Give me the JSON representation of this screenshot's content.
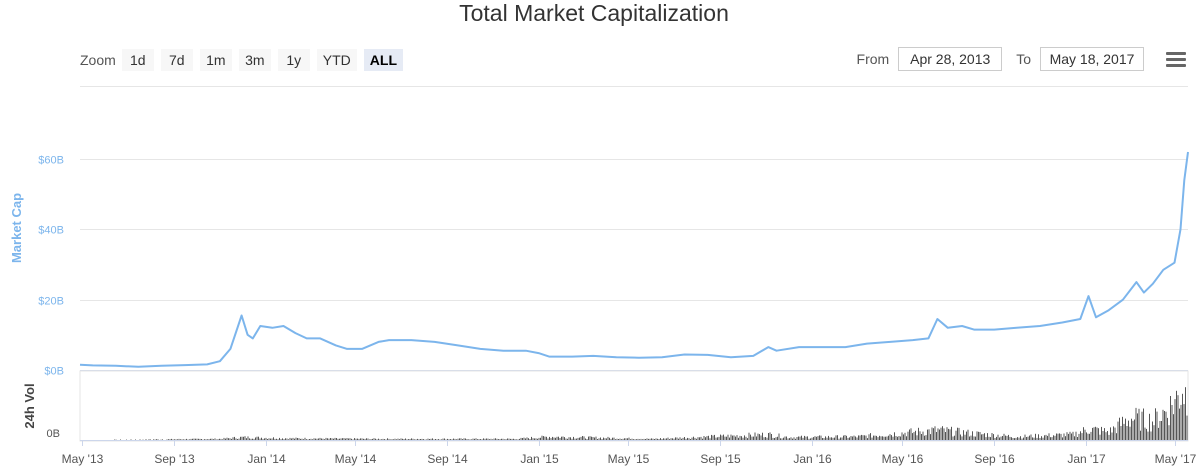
{
  "toolbar": {
    "zoom_label": "Zoom",
    "zoom_buttons": [
      "1d",
      "7d",
      "1m",
      "3m",
      "1y",
      "YTD",
      "ALL"
    ],
    "active_zoom": "ALL",
    "from_label": "From",
    "from_value": "Apr 28, 2013",
    "to_label": "To",
    "to_value": "May 18, 2017"
  },
  "icons": {
    "menu": "hamburger-menu-icon"
  },
  "colors": {
    "line": "#7cb5ec",
    "volume": "#555555",
    "grid": "#e6e6e6",
    "axis_text": "#666666"
  },
  "chart_data": {
    "type": "line",
    "title": "Total Market Capitalization",
    "ylabel": "Market Cap",
    "y_tick_labels": [
      "$0B",
      "$20B",
      "$40B",
      "$60B"
    ],
    "y_ticks": [
      0,
      20,
      40,
      60
    ],
    "ylim": [
      0,
      60
    ],
    "x_tick_labels": [
      "May '13",
      "Sep '13",
      "Jan '14",
      "May '14",
      "Sep '14",
      "Jan '15",
      "May '15",
      "Sep '15",
      "Jan '16",
      "May '16",
      "Sep '16",
      "Jan '17",
      "May '17"
    ],
    "x_ticks": [
      "2013-05-01",
      "2013-09-01",
      "2014-01-01",
      "2014-05-01",
      "2014-09-01",
      "2015-01-01",
      "2015-05-01",
      "2015-09-01",
      "2016-01-01",
      "2016-05-01",
      "2016-09-01",
      "2017-01-01",
      "2017-05-01"
    ],
    "xlim": [
      "2013-04-28",
      "2017-05-18"
    ],
    "grid": true,
    "series": [
      {
        "type": "line",
        "points": [
          [
            "2013-04-28",
            1.5
          ],
          [
            "2013-05-15",
            1.3
          ],
          [
            "2013-06-15",
            1.2
          ],
          [
            "2013-07-15",
            0.9
          ],
          [
            "2013-08-15",
            1.2
          ],
          [
            "2013-09-15",
            1.4
          ],
          [
            "2013-10-15",
            1.6
          ],
          [
            "2013-11-01",
            2.5
          ],
          [
            "2013-11-15",
            6.0
          ],
          [
            "2013-11-30",
            15.5
          ],
          [
            "2013-12-08",
            10.0
          ],
          [
            "2013-12-15",
            9.0
          ],
          [
            "2013-12-25",
            12.5
          ],
          [
            "2014-01-10",
            12.0
          ],
          [
            "2014-01-25",
            12.5
          ],
          [
            "2014-02-10",
            10.5
          ],
          [
            "2014-02-25",
            9.0
          ],
          [
            "2014-03-15",
            9.0
          ],
          [
            "2014-04-05",
            7.0
          ],
          [
            "2014-04-20",
            6.0
          ],
          [
            "2014-05-10",
            6.0
          ],
          [
            "2014-06-01",
            8.0
          ],
          [
            "2014-06-15",
            8.5
          ],
          [
            "2014-07-15",
            8.5
          ],
          [
            "2014-08-15",
            8.0
          ],
          [
            "2014-09-15",
            7.0
          ],
          [
            "2014-10-15",
            6.0
          ],
          [
            "2014-11-15",
            5.5
          ],
          [
            "2014-12-15",
            5.5
          ],
          [
            "2015-01-01",
            4.8
          ],
          [
            "2015-01-15",
            3.8
          ],
          [
            "2015-02-15",
            3.8
          ],
          [
            "2015-03-15",
            4.0
          ],
          [
            "2015-04-15",
            3.6
          ],
          [
            "2015-05-15",
            3.5
          ],
          [
            "2015-06-15",
            3.6
          ],
          [
            "2015-07-15",
            4.4
          ],
          [
            "2015-08-15",
            4.3
          ],
          [
            "2015-09-15",
            3.6
          ],
          [
            "2015-10-15",
            4.0
          ],
          [
            "2015-11-04",
            6.5
          ],
          [
            "2015-11-15",
            5.5
          ],
          [
            "2015-12-15",
            6.5
          ],
          [
            "2016-01-15",
            6.5
          ],
          [
            "2016-02-15",
            6.5
          ],
          [
            "2016-03-15",
            7.5
          ],
          [
            "2016-04-15",
            8.0
          ],
          [
            "2016-05-15",
            8.5
          ],
          [
            "2016-06-05",
            9.0
          ],
          [
            "2016-06-17",
            14.5
          ],
          [
            "2016-07-01",
            12.0
          ],
          [
            "2016-07-20",
            12.5
          ],
          [
            "2016-08-05",
            11.5
          ],
          [
            "2016-09-01",
            11.5
          ],
          [
            "2016-10-01",
            12.0
          ],
          [
            "2016-11-01",
            12.5
          ],
          [
            "2016-12-01",
            13.5
          ],
          [
            "2016-12-25",
            14.5
          ],
          [
            "2017-01-05",
            21.0
          ],
          [
            "2017-01-15",
            15.0
          ],
          [
            "2017-02-01",
            17.0
          ],
          [
            "2017-02-20",
            20.0
          ],
          [
            "2017-03-10",
            25.0
          ],
          [
            "2017-03-20",
            22.0
          ],
          [
            "2017-04-01",
            24.5
          ],
          [
            "2017-04-15",
            28.5
          ],
          [
            "2017-04-30",
            30.5
          ],
          [
            "2017-05-08",
            40.0
          ],
          [
            "2017-05-13",
            54.0
          ],
          [
            "2017-05-18",
            62.0
          ]
        ]
      }
    ],
    "volume": {
      "label": "24h Vol",
      "y_tick_labels": [
        "0B"
      ],
      "points": [
        [
          "2013-04-28",
          0.0
        ],
        [
          "2013-11-01",
          0.02
        ],
        [
          "2013-12-01",
          0.05
        ],
        [
          "2014-01-01",
          0.04
        ],
        [
          "2014-02-01",
          0.03
        ],
        [
          "2014-06-01",
          0.02
        ],
        [
          "2014-12-01",
          0.02
        ],
        [
          "2015-01-15",
          0.06
        ],
        [
          "2015-06-01",
          0.02
        ],
        [
          "2015-11-04",
          0.1
        ],
        [
          "2015-12-01",
          0.05
        ],
        [
          "2016-03-01",
          0.06
        ],
        [
          "2016-06-17",
          0.18
        ],
        [
          "2016-08-01",
          0.12
        ],
        [
          "2016-10-01",
          0.06
        ],
        [
          "2016-12-15",
          0.1
        ],
        [
          "2017-01-05",
          0.2
        ],
        [
          "2017-02-01",
          0.15
        ],
        [
          "2017-03-01",
          0.4
        ],
        [
          "2017-04-01",
          0.35
        ],
        [
          "2017-04-20",
          0.55
        ],
        [
          "2017-05-05",
          0.8
        ],
        [
          "2017-05-10",
          1.0
        ],
        [
          "2017-05-18",
          0.7
        ]
      ]
    }
  }
}
